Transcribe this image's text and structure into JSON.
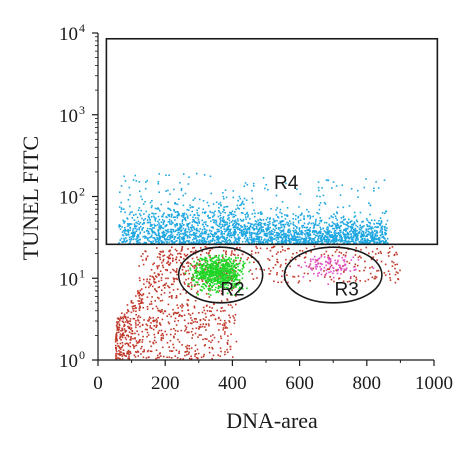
{
  "chart_data": {
    "type": "scatter",
    "xlabel": "DNA-area",
    "ylabel": "TUNEL FITC",
    "xlim": [
      0,
      1000
    ],
    "ylim": [
      1,
      10000
    ],
    "y_scale": "log",
    "grid": false,
    "x_ticks": [
      "0",
      "200",
      "400",
      "600",
      "800",
      "1000"
    ],
    "x_tick_values": [
      0,
      200,
      400,
      600,
      800,
      1000
    ],
    "y_ticks": [
      {
        "base": "10",
        "exp": "0",
        "value": 1
      },
      {
        "base": "10",
        "exp": "1",
        "value": 10
      },
      {
        "base": "10",
        "exp": "2",
        "value": 100
      },
      {
        "base": "10",
        "exp": "3",
        "value": 1000
      },
      {
        "base": "10",
        "exp": "4",
        "value": 10000
      }
    ],
    "gates": [
      {
        "label": "R4",
        "shape": "rectangle",
        "x": [
          25,
          1010
        ],
        "y": [
          26,
          8500
        ],
        "label_at": [
          560,
          150
        ]
      },
      {
        "label": "R2",
        "shape": "ellipse",
        "center": [
          365,
          10.5
        ],
        "x_range": [
          240,
          490
        ],
        "y_range": [
          5,
          24
        ],
        "label_at": [
          400,
          7.5
        ]
      },
      {
        "label": "R3",
        "shape": "ellipse",
        "center": [
          700,
          10.5
        ],
        "x_range": [
          555,
          845
        ],
        "y_range": [
          5,
          24
        ],
        "label_at": [
          740,
          7.5
        ]
      }
    ],
    "populations": [
      {
        "name": "R4 events",
        "color": "#1ea7e1"
      },
      {
        "name": "R2 events",
        "color": "#1fd626"
      },
      {
        "name": "R3 events",
        "color": "#e04fc8"
      },
      {
        "name": "ungated events",
        "color": "#c0392b"
      }
    ]
  }
}
